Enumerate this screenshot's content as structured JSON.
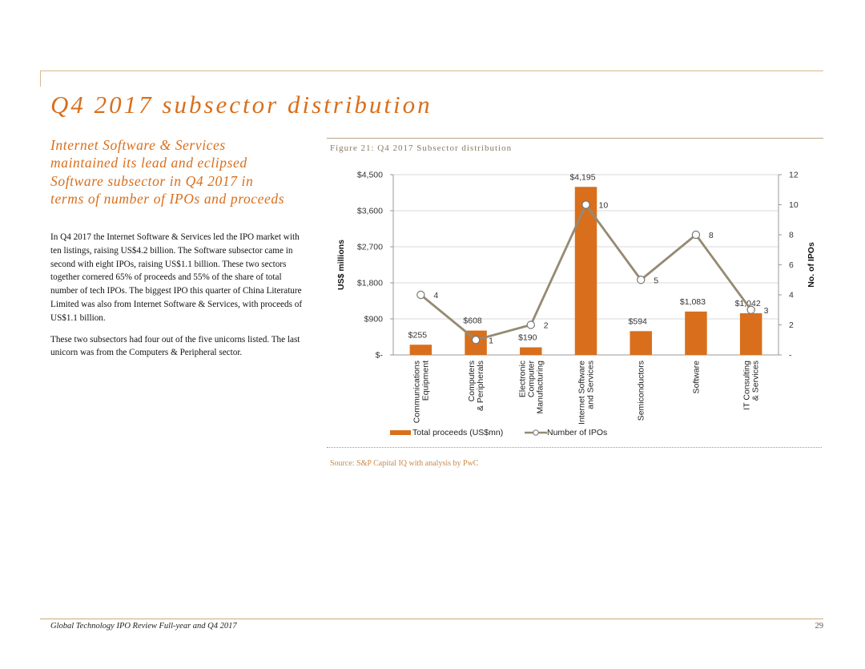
{
  "title": "Q4 2017 subsector distribution",
  "subtitle": "Internet Software & Services maintained its lead and eclipsed Software subsector in Q4 2017 in terms of number of IPOs and proceeds",
  "paragraphs": [
    "In Q4 2017 the Internet Software & Services led the IPO market with ten listings, raising US$4.2 billion. The Software subsector came in second with eight IPOs, raising US$1.1 billion. These two sectors together cornered 65% of proceeds and 55% of the share of total number of tech IPOs. The biggest IPO this quarter of China Literature Limited was also from Internet Software & Services, with proceeds of US$1.1 billion.",
    "These two subsectors had four out of the five unicorns listed. The last unicorn was from the Computers & Peripheral sector."
  ],
  "figure_title": "Figure 21: Q4 2017 Subsector distribution",
  "source": "Source: S&P Capital IQ with analysis by PwC",
  "footer": {
    "left": "Global Technology IPO Review Full-year and Q4 2017",
    "page_number": "29"
  },
  "colors": {
    "accent": "#d96f1c",
    "bar": "#d96f1c",
    "line": "#958a73",
    "grid": "#d9d9d9"
  },
  "chart_data": {
    "type": "bar",
    "categories": [
      [
        "Communications",
        "Equipment"
      ],
      [
        "Computers",
        "& Peripherals"
      ],
      [
        "Electronic",
        "Computer",
        "Manufacturing"
      ],
      [
        "Internet Software",
        "and Services"
      ],
      [
        "Semiconductors"
      ],
      [
        "Software"
      ],
      [
        "IT Consulting",
        "& Services"
      ]
    ],
    "series": [
      {
        "name": "Total proceeds (US$mn)",
        "type": "bar",
        "axis": "left",
        "values": [
          255,
          608,
          190,
          4195,
          594,
          1083,
          1042
        ],
        "labels": [
          "$255",
          "$608",
          "$190",
          "$4,195",
          "$594",
          "$1,083",
          "$1,042"
        ]
      },
      {
        "name": "Number of IPOs",
        "type": "line",
        "axis": "right",
        "values": [
          4,
          1,
          2,
          10,
          5,
          8,
          3
        ],
        "labels": [
          "4",
          "1",
          "2",
          "10",
          "5",
          "8",
          "3"
        ]
      }
    ],
    "ylabel": "US$ millions",
    "y2label": "No. of IPOs",
    "ylim": [
      0,
      4500
    ],
    "y2lim": [
      0,
      12
    ],
    "yticks": [
      {
        "v": 0,
        "label": "$-"
      },
      {
        "v": 900,
        "label": "$900"
      },
      {
        "v": 1800,
        "label": "$1,800"
      },
      {
        "v": 2700,
        "label": "$2,700"
      },
      {
        "v": 3600,
        "label": "$3,600"
      },
      {
        "v": 4500,
        "label": "$4,500"
      }
    ],
    "y2ticks": [
      {
        "v": 0,
        "label": "-"
      },
      {
        "v": 2,
        "label": "2"
      },
      {
        "v": 4,
        "label": "4"
      },
      {
        "v": 6,
        "label": "6"
      },
      {
        "v": 8,
        "label": "8"
      },
      {
        "v": 10,
        "label": "10"
      },
      {
        "v": 12,
        "label": "12"
      }
    ],
    "grid": true,
    "legend_position": "bottom"
  }
}
